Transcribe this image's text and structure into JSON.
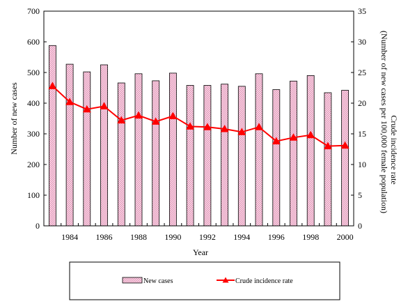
{
  "chart_data": {
    "type": "bar+line",
    "x": [
      1983,
      1984,
      1985,
      1986,
      1987,
      1988,
      1989,
      1990,
      1991,
      1992,
      1993,
      1994,
      1995,
      1996,
      1997,
      1998,
      1999,
      2000
    ],
    "x_tick_labels": [
      "1984",
      "1986",
      "1988",
      "1990",
      "1992",
      "1994",
      "1996",
      "1998",
      "2000"
    ],
    "x_tick_values": [
      1984,
      1986,
      1988,
      1990,
      1992,
      1994,
      1996,
      1998,
      2000
    ],
    "xlabel": "Year",
    "ylabel_left": "Number of new cases",
    "ylabel_right_line1": "Crude incidence rate",
    "ylabel_right_line2": "(Number of new cases per 100,000 female population)",
    "ylim_left": [
      0,
      700
    ],
    "yticks_left": [
      "0",
      "100",
      "200",
      "300",
      "400",
      "500",
      "600",
      "700"
    ],
    "ylim_right": [
      0,
      35
    ],
    "yticks_right": [
      "0",
      "5",
      "10",
      "15",
      "20",
      "25",
      "30",
      "35"
    ],
    "grid": false,
    "legend_position": "bottom",
    "series": [
      {
        "name": "New cases",
        "kind": "bar",
        "axis": "left",
        "color": "#f2c4d8",
        "values": [
          588,
          527,
          502,
          525,
          466,
          496,
          473,
          498,
          458,
          458,
          462,
          455,
          496,
          444,
          472,
          490,
          434,
          442
        ]
      },
      {
        "name": "Crude incidence rate",
        "kind": "line",
        "axis": "right",
        "color": "#ff0000",
        "values": [
          22.8,
          20.2,
          19.0,
          19.5,
          17.2,
          18.0,
          17.0,
          17.9,
          16.2,
          16.1,
          15.8,
          15.3,
          16.1,
          13.8,
          14.4,
          14.8,
          13.0,
          13.1
        ]
      }
    ]
  }
}
